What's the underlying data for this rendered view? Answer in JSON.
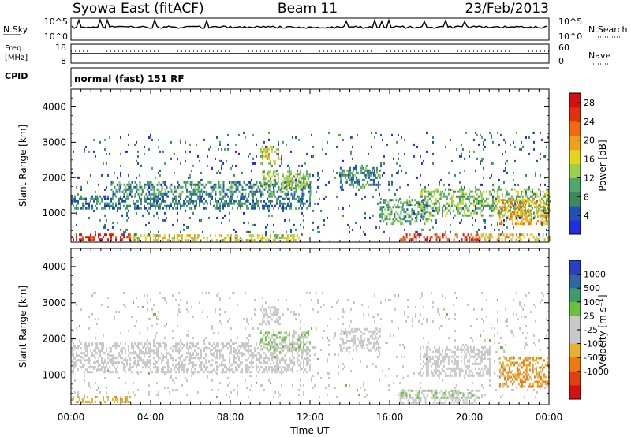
{
  "header": {
    "title": "Syowa East (fitACF)",
    "beam": "Beam 11",
    "date": "23/Feb/2013"
  },
  "top_panels": {
    "nsky_label": "N.Sky",
    "nsky_ticks": [
      "10^5",
      "10^0"
    ],
    "nsearch_label": "N.Search",
    "nsearch_ticks": [
      "10^5",
      "10^0"
    ],
    "freq_label": "Freq.",
    "freq_unit": "[MHz]",
    "freq_ticks": [
      "18",
      "8"
    ],
    "nave_label": "Nave",
    "nave_ticks": [
      "60",
      "0"
    ],
    "cpid_label": "CPID",
    "cpid_value": "normal (fast) 151 RF"
  },
  "colors": {
    "power_scale": [
      "#1f2ee0",
      "#2050b8",
      "#3a8a5c",
      "#4fa86a",
      "#9ad04a",
      "#e8d31c",
      "#f0a020",
      "#ee6a10",
      "#e03010",
      "#d61010"
    ],
    "velocity_scale": [
      "#2a40c0",
      "#2e6aa0",
      "#3f9a6e",
      "#6cc040",
      "#c8c8c8",
      "#c8c8c8",
      "#e8b030",
      "#ee7a10",
      "#e04010",
      "#d61010"
    ]
  },
  "chart_data": [
    {
      "type": "heatmap",
      "title": "Power",
      "xlabel": "",
      "ylabel": "Slant Range [km]",
      "x_ticks": [
        "00:00",
        "04:00",
        "08:00",
        "12:00",
        "16:00",
        "20:00",
        "00:00"
      ],
      "xlim_hours": [
        0,
        24
      ],
      "ylim": [
        180,
        4500
      ],
      "y_ticks": [
        1000,
        2000,
        3000,
        4000
      ],
      "colorbar": {
        "label": "Power [dB]",
        "ticks": [
          "4",
          "8",
          "12",
          "16",
          "20",
          "24",
          "28"
        ],
        "range": [
          0,
          30
        ]
      },
      "regions": [
        {
          "t0": 0.0,
          "t1": 3.0,
          "r0": 250,
          "r1": 420,
          "value": 27
        },
        {
          "t0": 16.5,
          "t1": 20.5,
          "r0": 250,
          "r1": 420,
          "value": 26
        },
        {
          "t0": 3.0,
          "t1": 11.5,
          "r0": 250,
          "r1": 400,
          "value": 16
        },
        {
          "t0": 20.5,
          "t1": 24.0,
          "r0": 250,
          "r1": 420,
          "value": 18
        },
        {
          "t0": 0.0,
          "t1": 12.0,
          "r0": 1100,
          "r1": 1500,
          "value": 7
        },
        {
          "t0": 2.0,
          "t1": 12.0,
          "r0": 1500,
          "r1": 1900,
          "value": 8
        },
        {
          "t0": 9.5,
          "t1": 12.0,
          "r0": 1700,
          "r1": 2200,
          "value": 12
        },
        {
          "t0": 9.5,
          "t1": 10.5,
          "r0": 2400,
          "r1": 2900,
          "value": 16
        },
        {
          "t0": 13.5,
          "t1": 15.5,
          "r0": 1700,
          "r1": 2300,
          "value": 8
        },
        {
          "t0": 15.5,
          "t1": 18.0,
          "r0": 700,
          "r1": 1400,
          "value": 10
        },
        {
          "t0": 17.5,
          "t1": 24.0,
          "r0": 900,
          "r1": 1700,
          "value": 12
        },
        {
          "t0": 21.5,
          "t1": 24.0,
          "r0": 700,
          "r1": 1400,
          "value": 19
        },
        {
          "t0": 0.0,
          "t1": 24.0,
          "r0": 400,
          "r1": 3300,
          "value": 6
        }
      ]
    },
    {
      "type": "heatmap",
      "title": "Velocity",
      "xlabel": "Time UT",
      "ylabel": "Slant Range [km]",
      "x_ticks": [
        "00:00",
        "04:00",
        "08:00",
        "12:00",
        "16:00",
        "20:00",
        "00:00"
      ],
      "xlim_hours": [
        0,
        24
      ],
      "ylim": [
        180,
        4500
      ],
      "y_ticks": [
        1000,
        2000,
        3000,
        4000
      ],
      "colorbar": {
        "label": "Velocity [m s⁻¹]",
        "ticks": [
          "1000",
          "500",
          "100",
          "25",
          "-25",
          "-100",
          "-500",
          "-1000"
        ],
        "range": [
          -1000,
          1000
        ]
      },
      "regions": [
        {
          "t0": 0.0,
          "t1": 3.0,
          "r0": 250,
          "r1": 420,
          "value": -300
        },
        {
          "t0": 16.5,
          "t1": 20.5,
          "r0": 250,
          "r1": 400,
          "value": 0
        },
        {
          "t0": 16.5,
          "t1": 20.5,
          "r0": 400,
          "r1": 600,
          "value": 150
        },
        {
          "t0": 0.0,
          "t1": 12.0,
          "r0": 1100,
          "r1": 1900,
          "value": 0
        },
        {
          "t0": 9.5,
          "t1": 12.0,
          "r0": 1700,
          "r1": 2200,
          "value": 200
        },
        {
          "t0": 9.5,
          "t1": 10.5,
          "r0": 2400,
          "r1": 2900,
          "value": 0
        },
        {
          "t0": 13.5,
          "t1": 15.5,
          "r0": 1700,
          "r1": 2300,
          "value": 0
        },
        {
          "t0": 17.5,
          "t1": 21.0,
          "r0": 1000,
          "r1": 1800,
          "value": 0
        },
        {
          "t0": 21.5,
          "t1": 24.0,
          "r0": 700,
          "r1": 1500,
          "value": -400
        },
        {
          "t0": 0.0,
          "t1": 24.0,
          "r0": 400,
          "r1": 3300,
          "value": 60
        }
      ]
    }
  ]
}
